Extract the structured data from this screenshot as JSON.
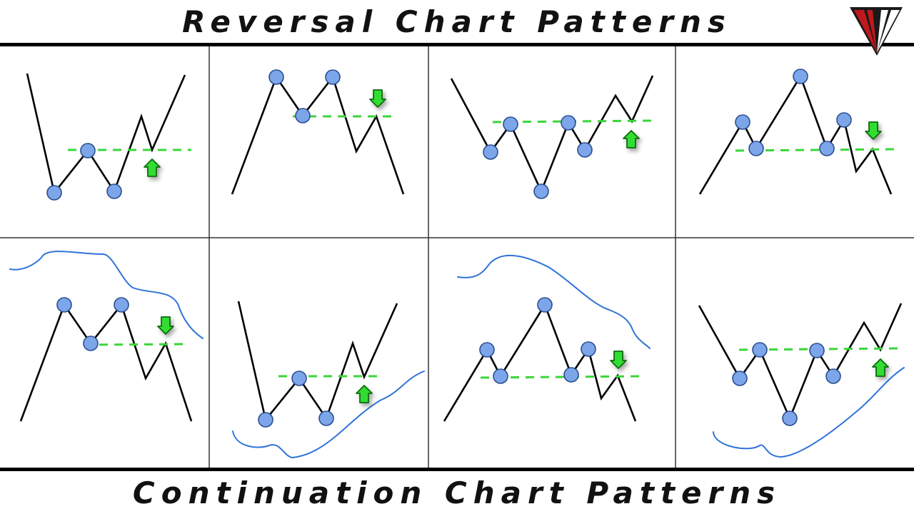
{
  "header": {
    "title": "Reversal Chart Patterns"
  },
  "footer": {
    "title": "Continuation Chart Patterns"
  },
  "logo": {
    "icon": "v-fan-logo-icon",
    "colors": [
      "#1a1a1a",
      "#c0181c",
      "#ffffff"
    ]
  },
  "colors": {
    "line": "#000000",
    "marker_fill": "#7da6ea",
    "marker_stroke": "#2a4e90",
    "neckline": "#3ad63a",
    "arrow_fill": "#33dd33",
    "arrow_stroke": "#0a6b0a",
    "trend_line": "#2f73d9",
    "grid": "#333333"
  },
  "patterns": {
    "reversal": [
      {
        "name": "double-bottom",
        "arrow": "up"
      },
      {
        "name": "double-top",
        "arrow": "down"
      },
      {
        "name": "inverse-head-and-shoulders",
        "arrow": "up"
      },
      {
        "name": "head-and-shoulders",
        "arrow": "down"
      }
    ],
    "continuation": [
      {
        "name": "double-top-in-downtrend",
        "arrow": "down"
      },
      {
        "name": "double-bottom-in-uptrend",
        "arrow": "up"
      },
      {
        "name": "head-and-shoulders-in-downtrend",
        "arrow": "down"
      },
      {
        "name": "inverse-head-and-shoulders-in-uptrend",
        "arrow": "up"
      }
    ]
  }
}
